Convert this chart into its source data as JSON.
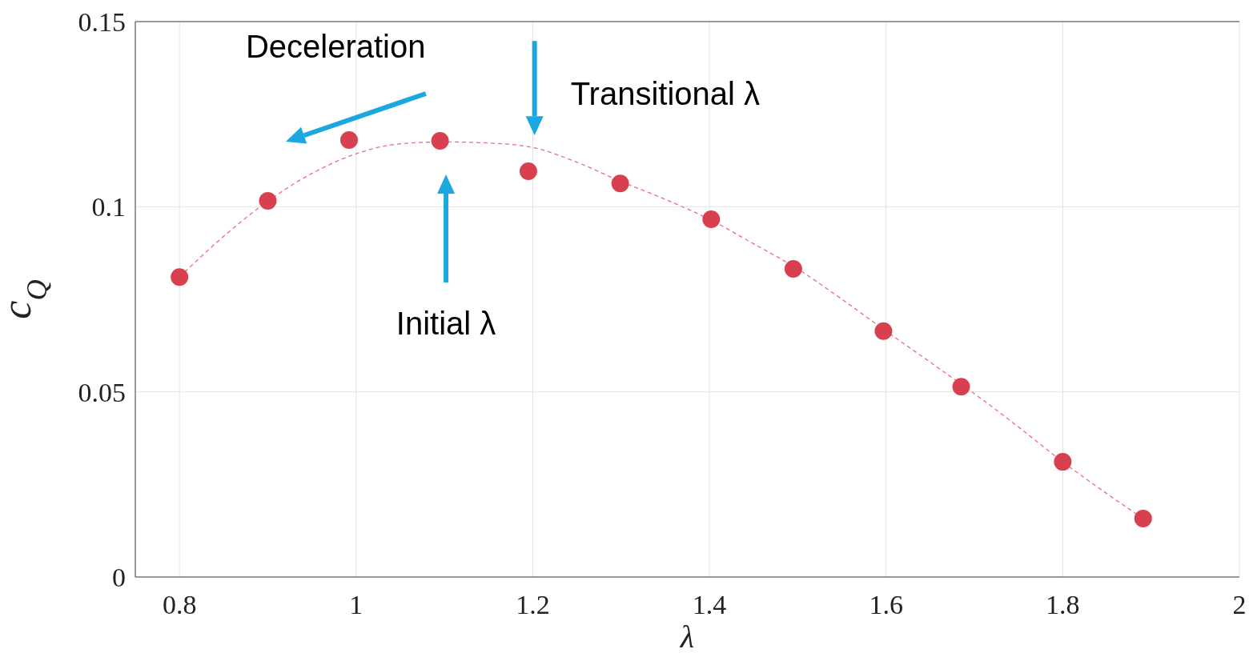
{
  "chart_data": {
    "type": "scatter",
    "xlabel": "λ",
    "ylabel": "c$_{Q}$",
    "xlim": [
      0.75,
      2
    ],
    "xticks": [
      0.8,
      1,
      1.2,
      1.4,
      1.6,
      1.8,
      2
    ],
    "ylim": [
      0,
      0.15
    ],
    "yticks": [
      0,
      0.05,
      0.1,
      0.15
    ],
    "grid": true,
    "marker": "circle",
    "series": [
      {
        "color": "#d9404f",
        "x": [
          0.8,
          0.9,
          0.992,
          1.095,
          1.195,
          1.299,
          1.402,
          1.495,
          1.597,
          1.685,
          1.8,
          1.891
        ],
        "values": [
          0.081,
          0.1016,
          0.118,
          0.1178,
          0.1096,
          0.1063,
          0.0966,
          0.0832,
          0.0664,
          0.0514,
          0.0311,
          0.0158
        ]
      },
      {
        "type": "line",
        "color": "#e8707c",
        "line_style": "dashed",
        "marker": "none",
        "x": [
          0.8,
          0.85,
          0.9,
          0.95,
          1.0,
          1.05,
          1.1,
          1.15,
          1.2,
          1.25,
          1.3,
          1.35,
          1.4,
          1.45,
          1.5,
          1.55,
          1.6,
          1.65,
          1.7,
          1.75,
          1.8,
          1.85,
          1.891
        ],
        "values": [
          0.081,
          0.092,
          0.1015,
          0.109,
          0.1143,
          0.117,
          0.1175,
          0.1172,
          0.116,
          0.112,
          0.1068,
          0.102,
          0.0966,
          0.09,
          0.0832,
          0.075,
          0.0664,
          0.058,
          0.0495,
          0.0405,
          0.0311,
          0.0225,
          0.0158
        ]
      }
    ],
    "annotations": [
      "Deceleration",
      "Transitional λ",
      "Initial λ"
    ]
  }
}
